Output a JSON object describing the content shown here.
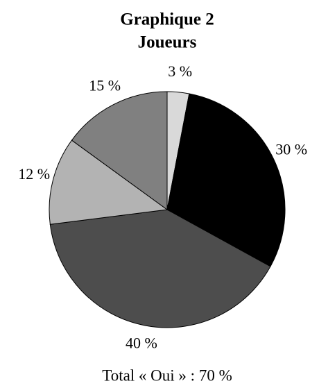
{
  "chart_data": {
    "type": "pie",
    "title": "Graphique 2",
    "subtitle": "Joueurs",
    "values": [
      3,
      30,
      40,
      12,
      15
    ],
    "value_labels": [
      "3 %",
      "30 %",
      "40 %",
      "12 %",
      "15 %"
    ],
    "colors": [
      "#d9d9d9",
      "#000000",
      "#4d4d4d",
      "#b3b3b3",
      "#808080"
    ],
    "annotation": "Total « Oui » : 70 %"
  }
}
